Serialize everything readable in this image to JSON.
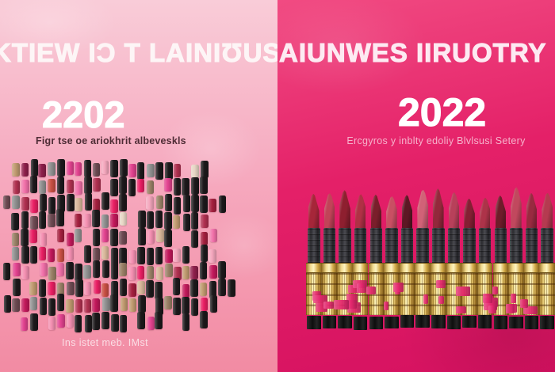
{
  "poster": {
    "left": {
      "headline": "KTIEW IƆ T LAINIƱUS",
      "year": "2202",
      "subtitle": "Figr tse oe ariokhrit albeveskls",
      "footer": "Ins istet meb. IMst",
      "bg_top": "#f9ccd8",
      "bg_bottom": "#f28ba3",
      "tile_black": "#1c191b",
      "tile_palette": [
        "#e2428f",
        "#f06fa8",
        "#c2185b",
        "#8e1f4b",
        "#f4a7bd",
        "#b03050",
        "#c94f43",
        "#d8b79a",
        "#c09a6f",
        "#e7d6c5",
        "#9a8066",
        "#8f8f8f",
        "#e91e63",
        "#6d4a52",
        "#f48fb1",
        "#a5203f"
      ]
    },
    "right": {
      "headline": "AIUNWES IIRUOTRY",
      "year": "2022",
      "subtitle": "Ercgyros y inblty edoliy Blvlsusi Setery",
      "bg_top": "#f14b82",
      "bg_bottom": "#d51160",
      "accent_pink": "#e7276f",
      "gold_light": "#fdf6c8",
      "gold_mid": "#d9b659",
      "gold_dark": "#8a6520",
      "lipstick_count": 16,
      "bullet_palette": [
        "#a62639",
        "#c14358",
        "#8e1f2f",
        "#b03045",
        "#7a1e2b",
        "#c94f63",
        "#5d1724",
        "#d16277",
        "#93283b",
        "#b8405a",
        "#841f33",
        "#ad3349",
        "#6f1c2a",
        "#c1485e",
        "#992a40",
        "#b53a50"
      ]
    }
  }
}
